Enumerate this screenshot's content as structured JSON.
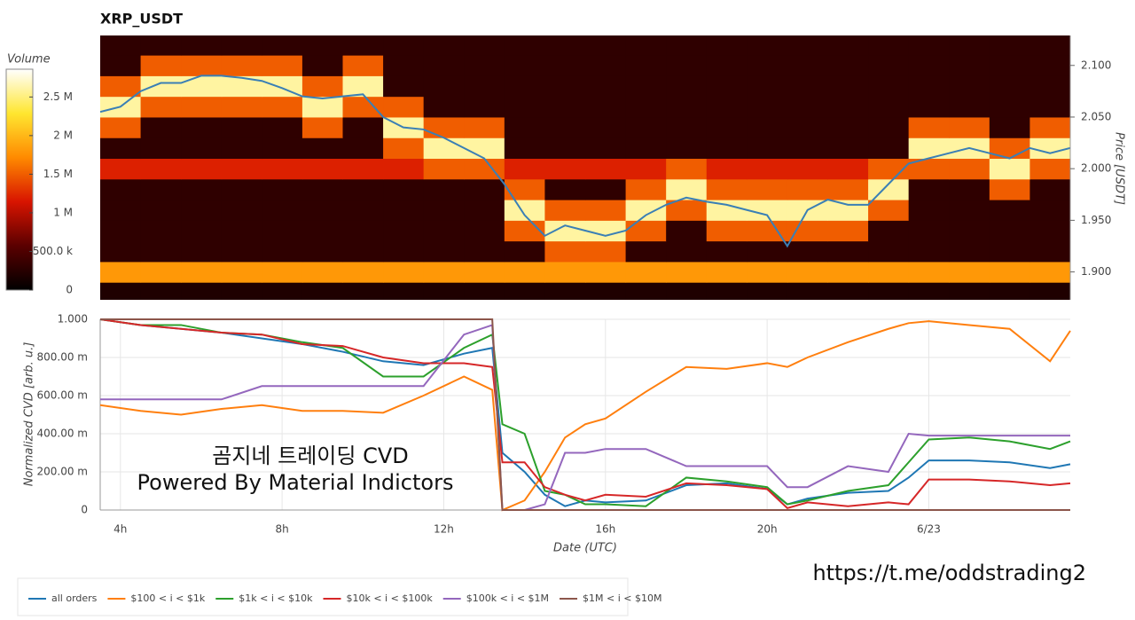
{
  "chart_data": [
    {
      "type": "heatmap",
      "title": "XRP_USDT",
      "colorbar_label": "Volume",
      "ylabel": "Price [USDT]",
      "xlim": [
        3.5,
        27.5
      ],
      "ylim": [
        1.873,
        2.129
      ],
      "yticks": [
        {
          "value": 1.9,
          "label": "1.900"
        },
        {
          "value": 1.95,
          "label": "1.950"
        },
        {
          "value": 2.0,
          "label": "2.000"
        },
        {
          "value": 2.05,
          "label": "2.050"
        },
        {
          "value": 2.1,
          "label": "2.100"
        }
      ],
      "zlim": [
        0,
        2860000
      ],
      "colorbar_ticks": [
        0,
        {
          "value": 500000,
          "label": "500.0 k"
        },
        {
          "value": 1000000,
          "label": "1 M"
        },
        {
          "value": 1500000,
          "label": "1.5 M"
        },
        {
          "value": 2000000,
          "label": "2 M"
        },
        {
          "value": 2500000,
          "label": "2.5 M"
        }
      ],
      "colormap": [
        "#000000",
        "#5a0000",
        "#d81400",
        "#ff8a00",
        "#ffe630",
        "#ffffff"
      ],
      "x_bins": [
        3.5,
        4.5,
        5.5,
        6.5,
        7.5,
        8.5,
        9.5,
        10.5,
        11.5,
        12.5,
        13.5,
        14.5,
        15.5,
        16.5,
        17.5,
        18.5,
        19.5,
        20.5,
        21.5,
        22.5,
        23.5,
        24.5,
        25.5,
        26.5,
        27.5
      ],
      "y_bins": [
        1.87,
        1.89,
        1.91,
        1.93,
        1.95,
        1.97,
        1.99,
        2.01,
        2.03,
        2.05,
        2.07,
        2.09,
        2.11,
        2.13
      ],
      "z": [
        [
          200000.0,
          200000.0,
          200000.0,
          200000.0,
          200000.0,
          200000.0,
          200000.0,
          200000.0,
          200000.0,
          200000.0,
          200000.0,
          200000.0,
          200000.0,
          200000.0,
          200000.0,
          200000.0,
          200000.0,
          200000.0,
          200000.0,
          200000.0,
          200000.0,
          200000.0,
          200000.0,
          200000.0
        ],
        [
          1800000.0,
          1800000.0,
          1800000.0,
          1800000.0,
          1800000.0,
          1800000.0,
          1800000.0,
          1800000.0,
          1800000.0,
          1800000.0,
          1800000.0,
          1800000.0,
          1800000.0,
          1800000.0,
          1800000.0,
          1800000.0,
          1800000.0,
          1800000.0,
          1800000.0,
          1800000.0,
          1800000.0,
          1800000.0,
          1800000.0,
          1800000.0
        ],
        [
          300000.0,
          300000.0,
          300000.0,
          300000.0,
          300000.0,
          300000.0,
          300000.0,
          300000.0,
          300000.0,
          300000.0,
          300000.0,
          1500000.0,
          1500000.0,
          300000.0,
          300000.0,
          300000.0,
          300000.0,
          300000.0,
          300000.0,
          300000.0,
          300000.0,
          300000.0,
          300000.0,
          300000.0
        ],
        [
          300000.0,
          300000.0,
          300000.0,
          300000.0,
          300000.0,
          300000.0,
          300000.0,
          300000.0,
          300000.0,
          300000.0,
          1500000.0,
          2600000.0,
          2600000.0,
          1500000.0,
          300000.0,
          1500000.0,
          1500000.0,
          1500000.0,
          1500000.0,
          300000.0,
          300000.0,
          300000.0,
          300000.0,
          300000.0
        ],
        [
          300000.0,
          300000.0,
          300000.0,
          300000.0,
          300000.0,
          300000.0,
          300000.0,
          300000.0,
          300000.0,
          300000.0,
          2600000.0,
          1500000.0,
          1500000.0,
          2600000.0,
          1500000.0,
          2600000.0,
          2600000.0,
          2600000.0,
          2600000.0,
          1500000.0,
          300000.0,
          300000.0,
          300000.0,
          300000.0
        ],
        [
          300000.0,
          300000.0,
          300000.0,
          300000.0,
          300000.0,
          300000.0,
          300000.0,
          300000.0,
          300000.0,
          300000.0,
          1500000.0,
          300000.0,
          300000.0,
          1500000.0,
          2600000.0,
          1500000.0,
          1500000.0,
          1500000.0,
          1500000.0,
          2600000.0,
          300000.0,
          300000.0,
          1500000.0,
          300000.0
        ],
        [
          1200000.0,
          1200000.0,
          1200000.0,
          1200000.0,
          1200000.0,
          1200000.0,
          1200000.0,
          1200000.0,
          1500000.0,
          1500000.0,
          1200000.0,
          1200000.0,
          1200000.0,
          1200000.0,
          1500000.0,
          1200000.0,
          1200000.0,
          1200000.0,
          1200000.0,
          1500000.0,
          1500000.0,
          1500000.0,
          2600000.0,
          1500000.0
        ],
        [
          300000.0,
          300000.0,
          300000.0,
          300000.0,
          300000.0,
          300000.0,
          300000.0,
          1500000.0,
          2600000.0,
          2600000.0,
          300000.0,
          300000.0,
          300000.0,
          300000.0,
          300000.0,
          300000.0,
          300000.0,
          300000.0,
          300000.0,
          300000.0,
          2600000.0,
          2600000.0,
          1500000.0,
          2600000.0
        ],
        [
          1500000.0,
          300000.0,
          300000.0,
          300000.0,
          300000.0,
          1500000.0,
          300000.0,
          2600000.0,
          1500000.0,
          1500000.0,
          300000.0,
          300000.0,
          300000.0,
          300000.0,
          300000.0,
          300000.0,
          300000.0,
          300000.0,
          300000.0,
          300000.0,
          1500000.0,
          1500000.0,
          300000.0,
          1500000.0
        ],
        [
          2600000.0,
          1500000.0,
          1500000.0,
          1500000.0,
          1500000.0,
          2600000.0,
          1500000.0,
          1500000.0,
          300000.0,
          300000.0,
          300000.0,
          300000.0,
          300000.0,
          300000.0,
          300000.0,
          300000.0,
          300000.0,
          300000.0,
          300000.0,
          300000.0,
          300000.0,
          300000.0,
          300000.0,
          300000.0
        ],
        [
          1500000.0,
          2600000.0,
          2600000.0,
          2600000.0,
          2600000.0,
          1500000.0,
          2600000.0,
          300000.0,
          300000.0,
          300000.0,
          300000.0,
          300000.0,
          300000.0,
          300000.0,
          300000.0,
          300000.0,
          300000.0,
          300000.0,
          300000.0,
          300000.0,
          300000.0,
          300000.0,
          300000.0,
          300000.0
        ],
        [
          300000.0,
          1500000.0,
          1500000.0,
          1500000.0,
          1500000.0,
          300000.0,
          1500000.0,
          300000.0,
          300000.0,
          300000.0,
          300000.0,
          300000.0,
          300000.0,
          300000.0,
          300000.0,
          300000.0,
          300000.0,
          300000.0,
          300000.0,
          300000.0,
          300000.0,
          300000.0,
          300000.0,
          300000.0
        ],
        [
          300000.0,
          300000.0,
          300000.0,
          300000.0,
          300000.0,
          300000.0,
          300000.0,
          300000.0,
          300000.0,
          300000.0,
          300000.0,
          300000.0,
          300000.0,
          300000.0,
          300000.0,
          300000.0,
          300000.0,
          300000.0,
          300000.0,
          300000.0,
          300000.0,
          300000.0,
          300000.0,
          300000.0
        ]
      ],
      "line": {
        "color": "#3a7fb5",
        "x": [
          3.5,
          4,
          4.5,
          5,
          5.5,
          6,
          6.5,
          7,
          7.5,
          8,
          8.5,
          9,
          9.5,
          10,
          10.5,
          11,
          11.5,
          12,
          12.5,
          13,
          13.5,
          14,
          14.5,
          15,
          15.5,
          16,
          16.5,
          17,
          17.5,
          18,
          18.5,
          19,
          19.5,
          20,
          20.5,
          21,
          21.5,
          22,
          22.5,
          23,
          23.5,
          24,
          24.5,
          25,
          25.5,
          26,
          26.5,
          27,
          27.5
        ],
        "values": [
          2.055,
          2.06,
          2.075,
          2.083,
          2.083,
          2.09,
          2.09,
          2.088,
          2.085,
          2.078,
          2.07,
          2.068,
          2.07,
          2.072,
          2.05,
          2.04,
          2.038,
          2.03,
          2.02,
          2.01,
          1.985,
          1.955,
          1.935,
          1.945,
          1.94,
          1.935,
          1.94,
          1.955,
          1.965,
          1.972,
          1.968,
          1.965,
          1.96,
          1.955,
          1.925,
          1.96,
          1.97,
          1.965,
          1.965,
          1.985,
          2.005,
          2.01,
          2.015,
          2.02,
          2.015,
          2.01,
          2.02,
          2.015,
          2.02
        ]
      }
    },
    {
      "type": "line",
      "xlabel": "Date (UTC)",
      "ylabel": "Normalized CVD [arb. u.]",
      "grid": true,
      "xlim": [
        3.5,
        27.5
      ],
      "ylim": [
        0,
        1
      ],
      "xticks": [
        {
          "value": 4,
          "label": "4h"
        },
        {
          "value": 8,
          "label": "8h"
        },
        {
          "value": 12,
          "label": "12h"
        },
        {
          "value": 16,
          "label": "16h"
        },
        {
          "value": 20,
          "label": "20h"
        },
        {
          "value": 24,
          "label": "6/23"
        }
      ],
      "yticks": [
        0,
        {
          "value": 0.2,
          "label": "200.00 m"
        },
        {
          "value": 0.4,
          "label": "400.00 m"
        },
        {
          "value": 0.6,
          "label": "600.00 m"
        },
        {
          "value": 0.8,
          "label": "800.00 m"
        },
        {
          "value": 1,
          "label": "1.000"
        }
      ],
      "x": [
        3.5,
        4.5,
        5.5,
        6.5,
        7.5,
        8.5,
        9.5,
        10.5,
        11.5,
        12.5,
        13.2,
        13.45,
        14,
        14.5,
        15,
        15.5,
        16,
        17,
        18,
        19,
        20,
        20.5,
        21,
        22,
        23,
        23.5,
        24,
        25,
        26,
        27,
        27.5
      ],
      "series": [
        {
          "name": "all orders",
          "color": "#1f77b4",
          "values": [
            1.0,
            0.97,
            0.95,
            0.93,
            0.9,
            0.87,
            0.83,
            0.78,
            0.76,
            0.82,
            0.85,
            0.3,
            0.2,
            0.08,
            0.02,
            0.05,
            0.04,
            0.05,
            0.13,
            0.14,
            0.11,
            0.03,
            0.06,
            0.09,
            0.1,
            0.17,
            0.26,
            0.26,
            0.25,
            0.22,
            0.24
          ]
        },
        {
          "name": "$100 < i < $1k",
          "color": "#ff7f0e",
          "values": [
            0.55,
            0.52,
            0.5,
            0.53,
            0.55,
            0.52,
            0.52,
            0.51,
            0.6,
            0.7,
            0.63,
            0.0,
            0.05,
            0.2,
            0.38,
            0.45,
            0.48,
            0.62,
            0.75,
            0.74,
            0.77,
            0.75,
            0.8,
            0.88,
            0.95,
            0.98,
            0.99,
            0.97,
            0.95,
            0.78,
            0.94
          ]
        },
        {
          "name": "$1k < i < $10k",
          "color": "#2ca02c",
          "values": [
            1.0,
            0.97,
            0.97,
            0.93,
            0.92,
            0.88,
            0.85,
            0.7,
            0.7,
            0.85,
            0.92,
            0.45,
            0.4,
            0.1,
            0.08,
            0.03,
            0.03,
            0.02,
            0.17,
            0.15,
            0.12,
            0.03,
            0.05,
            0.1,
            0.13,
            0.25,
            0.37,
            0.38,
            0.36,
            0.32,
            0.36
          ]
        },
        {
          "name": "$10k < i < $100k",
          "color": "#d62728",
          "values": [
            1.0,
            0.97,
            0.95,
            0.93,
            0.92,
            0.87,
            0.86,
            0.8,
            0.77,
            0.77,
            0.75,
            0.25,
            0.25,
            0.12,
            0.08,
            0.05,
            0.08,
            0.07,
            0.14,
            0.13,
            0.11,
            0.01,
            0.04,
            0.02,
            0.04,
            0.03,
            0.16,
            0.16,
            0.15,
            0.13,
            0.14
          ]
        },
        {
          "name": "$100k < i < $1M",
          "color": "#9467bd",
          "values": [
            0.58,
            0.58,
            0.58,
            0.58,
            0.65,
            0.65,
            0.65,
            0.65,
            0.65,
            0.92,
            0.97,
            0.0,
            0.0,
            0.03,
            0.3,
            0.3,
            0.32,
            0.32,
            0.23,
            0.23,
            0.23,
            0.12,
            0.12,
            0.23,
            0.2,
            0.4,
            0.39,
            0.39,
            0.39,
            0.39,
            0.39
          ]
        },
        {
          "name": "$1M < i < $10M",
          "color": "#8c564b",
          "values": [
            1.0,
            1.0,
            1.0,
            1.0,
            1.0,
            1.0,
            1.0,
            1.0,
            1.0,
            1.0,
            1.0,
            0.0,
            0.0,
            0.0,
            0.0,
            0.0,
            0.0,
            0.0,
            0.0,
            0.0,
            0.0,
            0.0,
            0.0,
            0.0,
            0.0,
            0.0,
            0.0,
            0.0,
            0.0,
            0.0,
            0.0
          ]
        }
      ]
    }
  ],
  "watermark": {
    "line1": "곰지네 트레이딩 CVD",
    "line2": "Powered By Material Indictors"
  },
  "url": "https://t.me/oddstrading2"
}
